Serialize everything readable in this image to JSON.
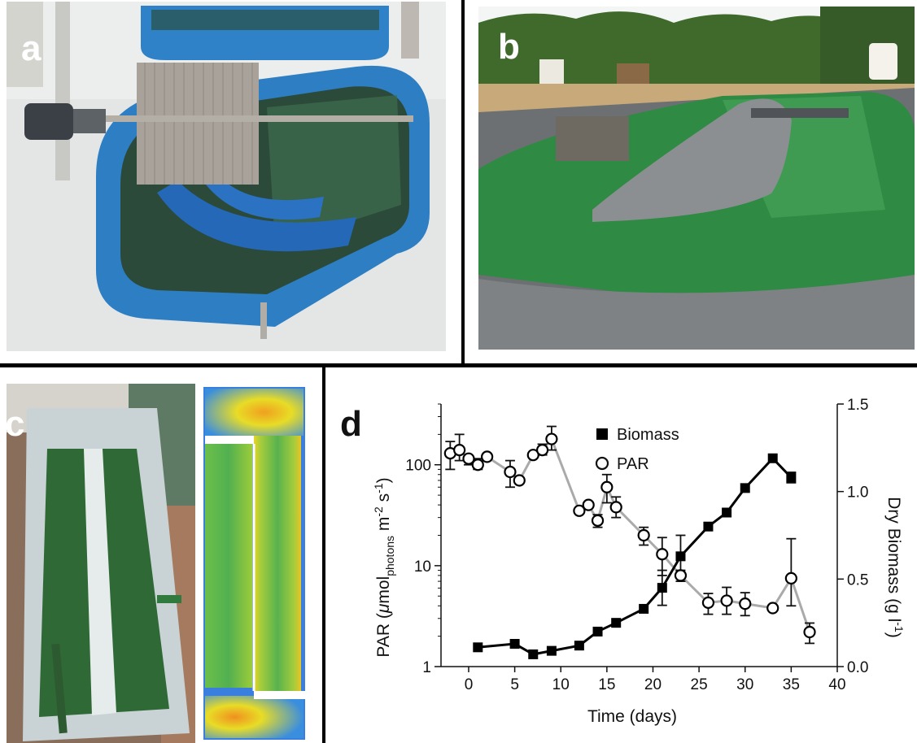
{
  "panels": {
    "a": {
      "label": "a"
    },
    "b": {
      "label": "b"
    },
    "c": {
      "label": "c"
    },
    "d": {
      "label": "d"
    }
  },
  "chart_data": {
    "type": "line",
    "xlabel": "Time (days)",
    "ylabel_left": "PAR (μmol photons m-2 s-1)",
    "ylabel_right": "Dry Biomass (g l-1)",
    "xlim": [
      -3,
      40
    ],
    "x_ticks": [
      0,
      5,
      10,
      15,
      20,
      25,
      30,
      35,
      40
    ],
    "ylim_left": [
      1,
      400
    ],
    "y_scale_left": "log",
    "y_ticks_left": [
      1,
      10,
      100
    ],
    "ylim_right": [
      0,
      1.5
    ],
    "y_ticks_right": [
      "0.0",
      "0.5",
      "1.0",
      "1.5"
    ],
    "legend_position": "top-right",
    "colors": {
      "biomass": "#000000",
      "par_line": "#aaaaaa",
      "marker_edge": "#000000"
    },
    "series": [
      {
        "name": "Biomass",
        "axis": "right",
        "marker": "filled-square",
        "x": [
          1,
          5,
          7,
          9,
          12,
          14,
          16,
          19,
          21,
          23,
          26,
          28,
          30,
          33,
          35
        ],
        "y": [
          0.11,
          0.13,
          0.07,
          0.09,
          0.12,
          0.2,
          0.25,
          0.33,
          0.45,
          0.63,
          0.8,
          0.88,
          1.02,
          1.19,
          1.08
        ],
        "err": [
          0,
          0,
          0,
          0,
          0,
          0,
          0,
          0,
          0.1,
          0.12,
          0,
          0,
          0,
          0,
          0.03
        ]
      },
      {
        "name": "PAR",
        "axis": "left",
        "marker": "open-circle",
        "x": [
          -2,
          -1,
          0,
          1,
          2,
          4.5,
          5.5,
          7,
          8,
          9,
          12,
          13,
          14,
          15,
          16,
          19,
          21,
          23,
          26,
          28,
          30,
          33,
          35,
          37
        ],
        "y": [
          130,
          140,
          115,
          100,
          120,
          85,
          70,
          125,
          140,
          180,
          35,
          40,
          28,
          60,
          38,
          20,
          13,
          8,
          4.3,
          4.5,
          4.2,
          3.8,
          7.5,
          2.2
        ],
        "err_lo": [
          40,
          30,
          15,
          10,
          0,
          25,
          0,
          0,
          15,
          40,
          0,
          0,
          4,
          18,
          8,
          4,
          5,
          1,
          1,
          1.2,
          1,
          0,
          3.5,
          0.5
        ],
        "err_hi": [
          40,
          60,
          0,
          15,
          0,
          25,
          0,
          0,
          20,
          60,
          0,
          0,
          4,
          20,
          10,
          4,
          6,
          1,
          1,
          1.6,
          1.2,
          0,
          11,
          0.5
        ]
      }
    ]
  }
}
